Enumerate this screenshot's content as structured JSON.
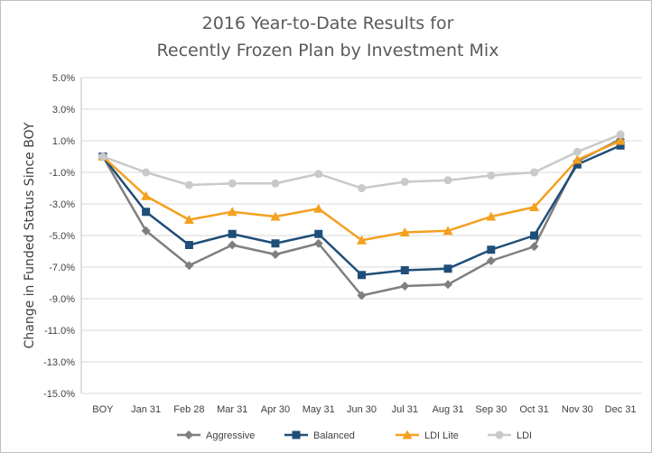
{
  "chart_data": {
    "type": "line",
    "title": [
      "2016 Year-to-Date Results for",
      "Recently Frozen Plan by Investment Mix"
    ],
    "ylabel": "Change in Funded Status Since BOY",
    "xlabel": "",
    "categories": [
      "BOY",
      "Jan 31",
      "Feb 28",
      "Mar 31",
      "Apr 30",
      "May 31",
      "Jun 30",
      "Jul 31",
      "Aug 31",
      "Sep 30",
      "Oct 31",
      "Nov 30",
      "Dec 31"
    ],
    "ylim": [
      -15.0,
      5.0
    ],
    "ytick_values": [
      5,
      3,
      1,
      -1,
      -3,
      -5,
      -7,
      -9,
      -11,
      -13,
      -15
    ],
    "ytick_labels": [
      "5.0%",
      "3.0%",
      "1.0%",
      "-1.0%",
      "-3.0%",
      "-5.0%",
      "-7.0%",
      "-9.0%",
      "-11.0%",
      "-13.0%",
      "-15.0%"
    ],
    "grid": true,
    "legend_position": "bottom",
    "series": [
      {
        "name": "Aggressive",
        "color": "#7f7f7f",
        "marker": "diamond",
        "values": [
          0,
          -4.7,
          -6.9,
          -5.6,
          -6.2,
          -5.5,
          -8.8,
          -8.2,
          -8.1,
          -6.6,
          -5.7,
          -0.3,
          1.1
        ]
      },
      {
        "name": "Balanced",
        "color": "#1f4e79",
        "marker": "square",
        "values": [
          0,
          -3.5,
          -5.6,
          -4.9,
          -5.5,
          -4.9,
          -7.5,
          -7.2,
          -7.1,
          -5.9,
          -5.0,
          -0.5,
          0.7
        ]
      },
      {
        "name": "LDI Lite",
        "color": "#f4a020",
        "marker": "triangle",
        "values": [
          0,
          -2.5,
          -4.0,
          -3.5,
          -3.8,
          -3.3,
          -5.3,
          -4.8,
          -4.7,
          -3.8,
          -3.2,
          -0.2,
          1.0
        ]
      },
      {
        "name": "LDI",
        "color": "#c9c9c9",
        "marker": "circle",
        "values": [
          0,
          -1.0,
          -1.8,
          -1.7,
          -1.7,
          -1.1,
          -2.0,
          -1.6,
          -1.5,
          -1.2,
          -1.0,
          0.3,
          1.4
        ]
      }
    ]
  }
}
